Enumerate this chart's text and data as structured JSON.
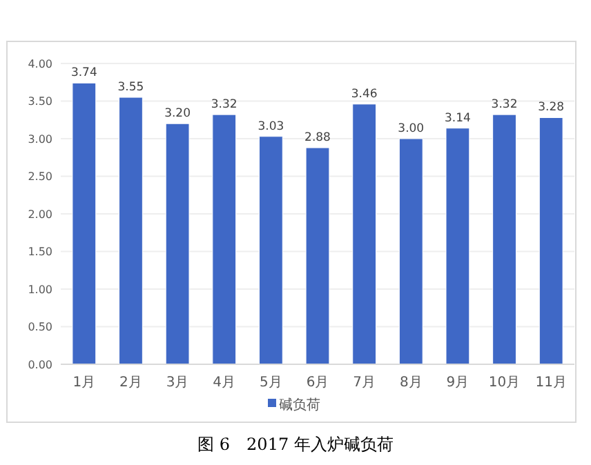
{
  "chart_data": {
    "type": "bar",
    "title": "图 6　2017 年入炉碱负荷",
    "categories": [
      "1月",
      "2月",
      "3月",
      "4月",
      "5月",
      "6月",
      "7月",
      "8月",
      "9月",
      "10月",
      "11月"
    ],
    "series": [
      {
        "name": "碱负荷",
        "color": "#3f68c6",
        "values": [
          3.74,
          3.55,
          3.2,
          3.32,
          3.03,
          2.88,
          3.46,
          3.0,
          3.14,
          3.32,
          3.28
        ],
        "value_labels": [
          "3.74",
          "3.55",
          "3.20",
          "3.32",
          "3.03",
          "2.88",
          "3.46",
          "3.00",
          "3.14",
          "3.32",
          "3.28"
        ]
      }
    ],
    "ylim": [
      0,
      4
    ],
    "yticks": [
      {
        "value": 0,
        "label": "0.00"
      },
      {
        "value": 0.5,
        "label": "0.50"
      },
      {
        "value": 1,
        "label": "1.00"
      },
      {
        "value": 1.5,
        "label": "1.50"
      },
      {
        "value": 2,
        "label": "2.00"
      },
      {
        "value": 2.5,
        "label": "2.50"
      },
      {
        "value": 3,
        "label": "3.00"
      },
      {
        "value": 3.5,
        "label": "3.50"
      },
      {
        "value": 4,
        "label": "4.00"
      }
    ],
    "grid": "y",
    "legend": "bottom"
  }
}
